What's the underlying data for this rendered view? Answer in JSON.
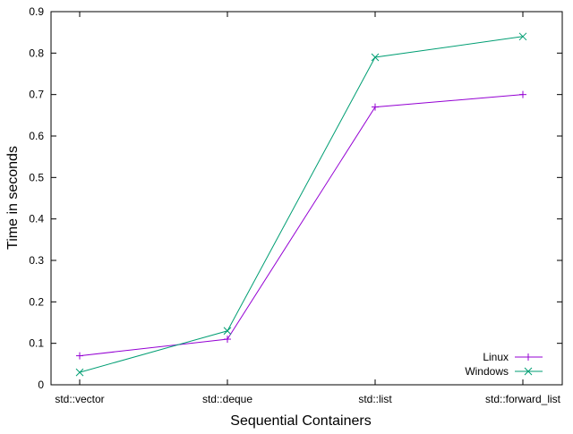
{
  "chart_data": {
    "type": "line",
    "title": "",
    "xlabel": "Sequential Containers",
    "ylabel": "Time in seconds",
    "categories": [
      "std::vector",
      "std::deque",
      "std::list",
      "std::forward_list"
    ],
    "series": [
      {
        "name": "Linux",
        "values": [
          0.07,
          0.11,
          0.67,
          0.7
        ],
        "color": "#9400d3",
        "marker": "plus"
      },
      {
        "name": "Windows",
        "values": [
          0.03,
          0.13,
          0.79,
          0.84
        ],
        "color": "#009e73",
        "marker": "cross"
      }
    ],
    "ylim": [
      0,
      0.9
    ],
    "yticks": [
      0,
      0.1,
      0.2,
      0.3,
      0.4,
      0.5,
      0.6,
      0.7,
      0.8,
      0.9
    ],
    "ytick_labels": [
      "0",
      "0.1",
      "0.2",
      "0.3",
      "0.4",
      "0.5",
      "0.6",
      "0.7",
      "0.8",
      "0.9"
    ],
    "grid": false,
    "legend_position": "bottom-right"
  }
}
